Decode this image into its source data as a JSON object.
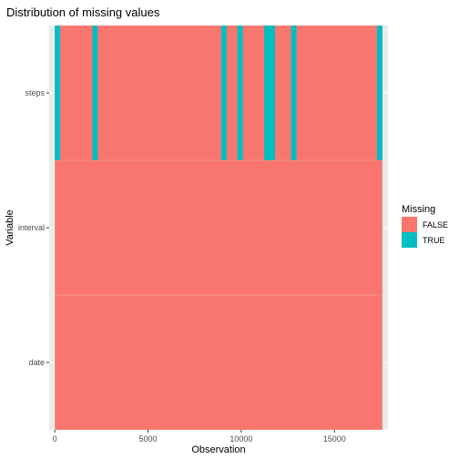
{
  "chart_data": {
    "type": "heatmap",
    "title": "Distribution of missing values",
    "xlabel": "Observation",
    "ylabel": "Variable",
    "xlim": [
      -300,
      17868
    ],
    "x_ticks": [
      0,
      5000,
      10000,
      15000
    ],
    "x_tick_labels": [
      "0",
      "5000",
      "10000",
      "15000"
    ],
    "variables": [
      "steps",
      "interval",
      "date"
    ],
    "n_observations": 17568,
    "legend": {
      "title": "Missing",
      "position": "right",
      "entries": [
        {
          "label": "FALSE",
          "color": "#F8766D"
        },
        {
          "label": "TRUE",
          "color": "#00BFC4"
        }
      ]
    },
    "missing_ranges": {
      "steps": [
        [
          0,
          288
        ],
        [
          2017,
          2305
        ],
        [
          8929,
          9217
        ],
        [
          9793,
          10081
        ],
        [
          11233,
          11521
        ],
        [
          11521,
          11809
        ],
        [
          12673,
          12961
        ],
        [
          17281,
          17568
        ]
      ],
      "interval": [],
      "date": []
    },
    "grid": true,
    "panel_background": "#EBEBEB"
  }
}
